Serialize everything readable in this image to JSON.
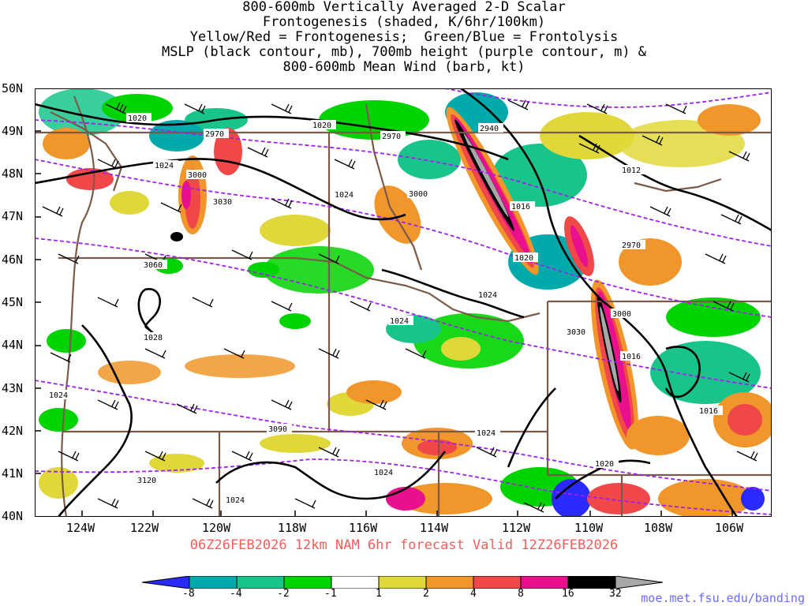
{
  "title": {
    "lines": [
      "800-600mb Vertically Averaged 2-D Scalar",
      "Frontogenesis (shaded, K/6hr/100km)",
      "Yellow/Red = Frontogenesis;  Green/Blue = Frontolysis",
      "MSLP (black contour, mb), 700mb height (purple contour, m) &",
      "800-600mb Mean Wind (barb, kt)"
    ]
  },
  "map": {
    "lat_labels": [
      "50N",
      "49N",
      "48N",
      "47N",
      "46N",
      "45N",
      "44N",
      "43N",
      "42N",
      "41N",
      "40N"
    ],
    "lon_labels": [
      "124W",
      "122W",
      "120W",
      "118W",
      "116W",
      "114W",
      "112W",
      "110W",
      "108W",
      "106W"
    ],
    "mslp_contour_labels": [
      "1020",
      "1020",
      "1024",
      "1024",
      "1012",
      "1016",
      "1020",
      "1024",
      "1028",
      "1024",
      "1024",
      "1024",
      "1020",
      "1016",
      "1016",
      "1024",
      "1024"
    ],
    "height_contour_labels": [
      "2970",
      "2970",
      "2940",
      "3000",
      "3000",
      "3030",
      "3060",
      "2970",
      "3000",
      "3030",
      "3090",
      "3120"
    ],
    "colors": {
      "mslp": "#000000",
      "height": "#a020f0",
      "borders": "#7b5a4a"
    }
  },
  "forecast_caption": "06Z26FEB2026 12km NAM 6hr forecast Valid 12Z26FEB2026",
  "colorbar": {
    "tick_labels": [
      "-8",
      "-4",
      "-2",
      "-1",
      "1",
      "2",
      "4",
      "8",
      "16",
      "32"
    ],
    "colors": [
      "#2a2aff",
      "#00aaaa",
      "#18c48c",
      "#00d400",
      "#ffffff",
      "#e0d83a",
      "#f0962a",
      "#f04848",
      "#e8108c",
      "#000000",
      "#a8a8a8"
    ]
  },
  "credit": "moe.met.fsu.edu/banding"
}
